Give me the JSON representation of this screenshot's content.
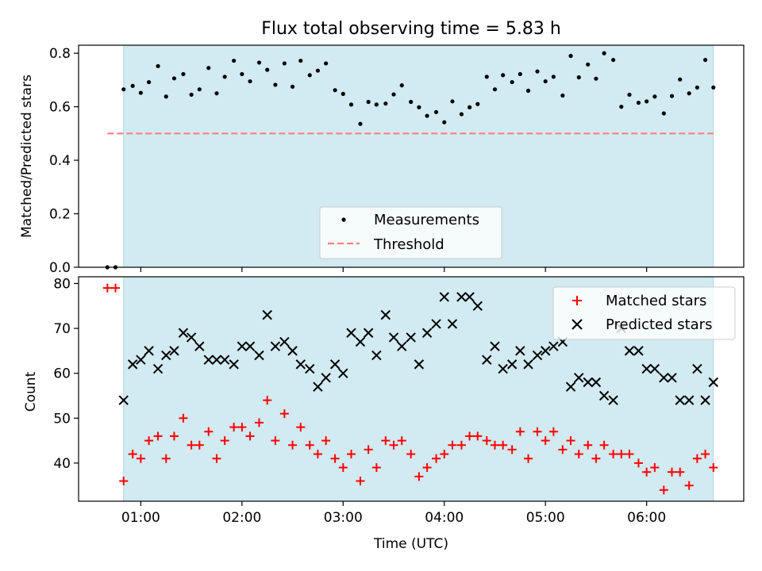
{
  "figure": {
    "title": "Flux total observing time = 5.83 h"
  },
  "chart_data": [
    {
      "type": "scatter",
      "panel": "top",
      "title": "Flux total observing time = 5.83 h",
      "xlabel": "",
      "ylabel": "Matched/Predicted stars",
      "ylim": [
        0,
        0.83
      ],
      "yticks": [
        0.0,
        0.2,
        0.4,
        0.6,
        0.8
      ],
      "ytick_labels": [
        "0.0",
        "0.2",
        "0.4",
        "0.6",
        "0.8"
      ],
      "xlim_hours": [
        0.385,
        6.96
      ],
      "shaded_span_hours": [
        0.83,
        6.66
      ],
      "legend_position": "lower center",
      "colors": {
        "measurement": "#000000",
        "threshold": "#ff7f7f",
        "span": "#add8e6"
      },
      "threshold": {
        "name": "Threshold",
        "value": 0.5,
        "x_range_hours": [
          0.67,
          6.66
        ]
      },
      "series": [
        {
          "name": "Measurements",
          "marker": "dot",
          "x_hours": [
            0.67,
            0.75,
            0.83,
            0.92,
            1.0,
            1.08,
            1.17,
            1.25,
            1.33,
            1.42,
            1.5,
            1.58,
            1.67,
            1.75,
            1.83,
            1.92,
            2.0,
            2.08,
            2.17,
            2.25,
            2.33,
            2.42,
            2.5,
            2.58,
            2.67,
            2.75,
            2.83,
            2.92,
            3.0,
            3.08,
            3.17,
            3.25,
            3.33,
            3.42,
            3.5,
            3.58,
            3.67,
            3.75,
            3.83,
            3.92,
            4.0,
            4.08,
            4.17,
            4.25,
            4.33,
            4.42,
            4.5,
            4.58,
            4.67,
            4.75,
            4.83,
            4.92,
            5.0,
            5.08,
            5.17,
            5.25,
            5.33,
            5.42,
            5.5,
            5.58,
            5.67,
            5.75,
            5.83,
            5.92,
            6.0,
            6.08,
            6.17,
            6.25,
            6.33,
            6.42,
            6.5,
            6.58,
            6.66
          ],
          "y": [
            0.0,
            0.0,
            0.665,
            0.678,
            0.652,
            0.692,
            0.752,
            0.638,
            0.706,
            0.722,
            0.645,
            0.665,
            0.745,
            0.65,
            0.712,
            0.772,
            0.722,
            0.695,
            0.765,
            0.738,
            0.682,
            0.762,
            0.675,
            0.772,
            0.718,
            0.735,
            0.762,
            0.662,
            0.648,
            0.608,
            0.536,
            0.618,
            0.608,
            0.612,
            0.646,
            0.68,
            0.618,
            0.598,
            0.566,
            0.58,
            0.542,
            0.62,
            0.572,
            0.598,
            0.61,
            0.712,
            0.665,
            0.718,
            0.692,
            0.722,
            0.66,
            0.732,
            0.695,
            0.712,
            0.642,
            0.79,
            0.71,
            0.758,
            0.705,
            0.8,
            0.775,
            0.6,
            0.645,
            0.615,
            0.62,
            0.638,
            0.575,
            0.64,
            0.702,
            0.65,
            0.672,
            0.775,
            0.672
          ]
        }
      ]
    },
    {
      "type": "scatter",
      "panel": "bottom",
      "xlabel": "Time (UTC)",
      "ylabel": "Count",
      "ylim": [
        31.5,
        81.5
      ],
      "yticks": [
        40,
        50,
        60,
        70,
        80
      ],
      "ytick_labels": [
        "40",
        "50",
        "60",
        "70",
        "80"
      ],
      "xlim_hours": [
        0.385,
        6.96
      ],
      "xticks_hours": [
        1,
        2,
        3,
        4,
        5,
        6
      ],
      "xtick_labels": [
        "01:00",
        "02:00",
        "03:00",
        "04:00",
        "05:00",
        "06:00"
      ],
      "shaded_span_hours": [
        0.83,
        6.66
      ],
      "legend_position": "upper right",
      "colors": {
        "matched": "#ff0000",
        "predicted": "#000000",
        "span": "#add8e6"
      },
      "series": [
        {
          "name": "Matched stars",
          "marker": "plus",
          "x_hours": [
            0.67,
            0.75,
            0.83,
            0.92,
            1.0,
            1.08,
            1.17,
            1.25,
            1.33,
            1.42,
            1.5,
            1.58,
            1.67,
            1.75,
            1.83,
            1.92,
            2.0,
            2.08,
            2.17,
            2.25,
            2.33,
            2.42,
            2.5,
            2.58,
            2.67,
            2.75,
            2.83,
            2.92,
            3.0,
            3.08,
            3.17,
            3.25,
            3.33,
            3.42,
            3.5,
            3.58,
            3.67,
            3.75,
            3.83,
            3.92,
            4.0,
            4.08,
            4.17,
            4.25,
            4.33,
            4.42,
            4.5,
            4.58,
            4.67,
            4.75,
            4.83,
            4.92,
            5.0,
            5.08,
            5.17,
            5.25,
            5.33,
            5.42,
            5.5,
            5.58,
            5.67,
            5.75,
            5.83,
            5.92,
            6.0,
            6.08,
            6.17,
            6.25,
            6.33,
            6.42,
            6.5,
            6.58,
            6.66
          ],
          "y": [
            79,
            79,
            36,
            42,
            41,
            45,
            46,
            41,
            46,
            50,
            44,
            44,
            47,
            41,
            45,
            48,
            48,
            46,
            49,
            54,
            45,
            51,
            44,
            48,
            44,
            42,
            45,
            41,
            39,
            42,
            36,
            43,
            39,
            45,
            44,
            45,
            42,
            37,
            39,
            41,
            42,
            44,
            44,
            46,
            46,
            45,
            44,
            44,
            43,
            47,
            41,
            47,
            45,
            47,
            43,
            45,
            42,
            44,
            41,
            44,
            42,
            42,
            42,
            40,
            38,
            39,
            34,
            38,
            38,
            35,
            41,
            42,
            39
          ]
        },
        {
          "name": "Predicted stars",
          "marker": "x",
          "x_hours": [
            0.83,
            0.92,
            1.0,
            1.08,
            1.17,
            1.25,
            1.33,
            1.42,
            1.5,
            1.58,
            1.67,
            1.75,
            1.83,
            1.92,
            2.0,
            2.08,
            2.17,
            2.25,
            2.33,
            2.42,
            2.5,
            2.58,
            2.67,
            2.75,
            2.83,
            2.92,
            3.0,
            3.08,
            3.17,
            3.25,
            3.33,
            3.42,
            3.5,
            3.58,
            3.67,
            3.75,
            3.83,
            3.92,
            4.0,
            4.08,
            4.17,
            4.25,
            4.33,
            4.42,
            4.5,
            4.58,
            4.67,
            4.75,
            4.83,
            4.92,
            5.0,
            5.08,
            5.17,
            5.25,
            5.33,
            5.42,
            5.5,
            5.58,
            5.67,
            5.75,
            5.83,
            5.92,
            6.0,
            6.08,
            6.17,
            6.25,
            6.33,
            6.42,
            6.5,
            6.58,
            6.66
          ],
          "y": [
            54,
            62,
            63,
            65,
            61,
            64,
            65,
            69,
            68,
            66,
            63,
            63,
            63,
            62,
            66,
            66,
            64,
            73,
            66,
            67,
            65,
            62,
            61,
            57,
            59,
            62,
            60,
            69,
            67,
            69,
            64,
            73,
            68,
            66,
            68,
            62,
            69,
            71,
            77,
            71,
            77,
            77,
            75,
            63,
            66,
            61,
            62,
            65,
            62,
            64,
            65,
            66,
            67,
            57,
            59,
            58,
            58,
            55,
            54,
            70,
            65,
            65,
            61,
            61,
            59,
            59,
            54,
            54,
            61,
            54,
            58
          ]
        }
      ]
    }
  ]
}
